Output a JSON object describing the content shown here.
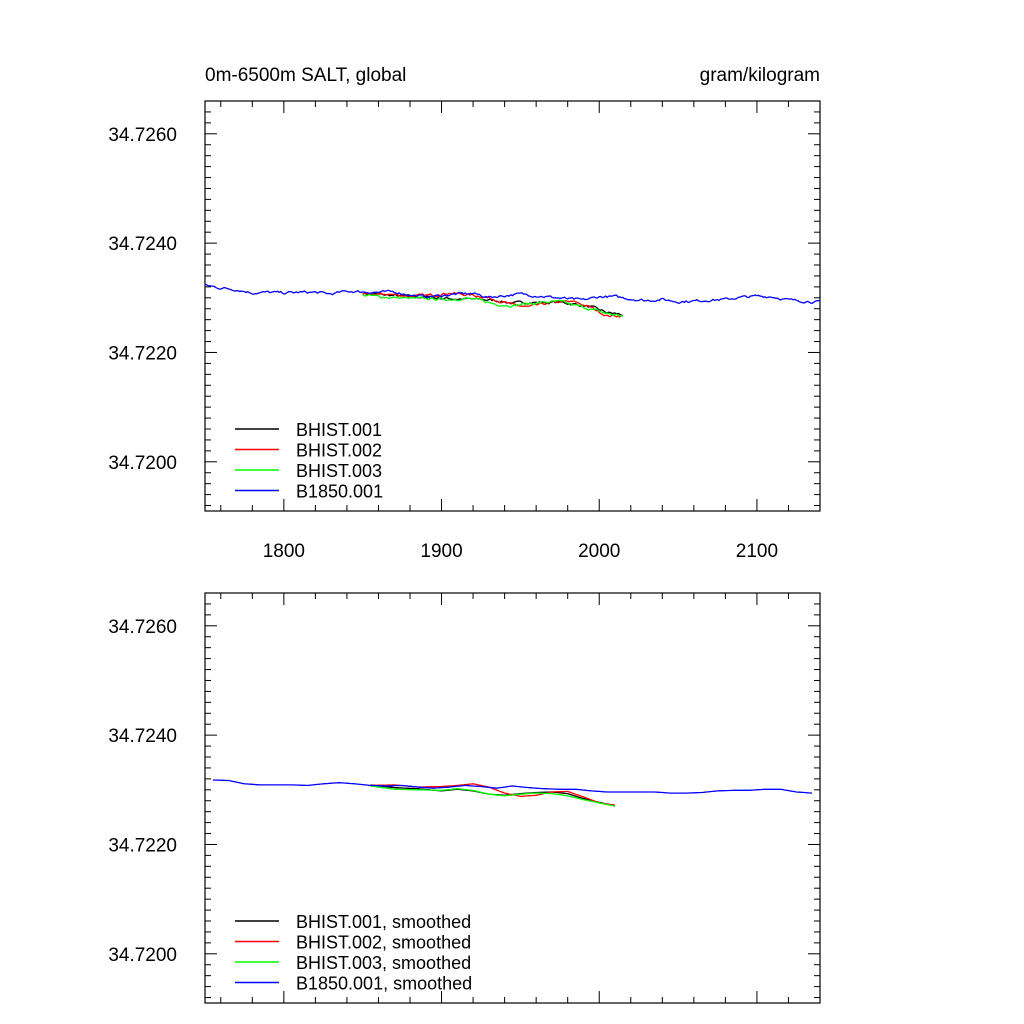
{
  "header": {
    "left_title": "0m-6500m SALT, global",
    "right_title": "gram/kilogram"
  },
  "colors": {
    "BHIST.001": "#000000",
    "BHIST.002": "#ff0000",
    "BHIST.003": "#00ff00",
    "B1850.001": "#0000ff"
  },
  "chart_data": [
    {
      "type": "line",
      "title": "0m-6500m SALT, global",
      "units": "gram/kilogram",
      "xlim": [
        1750,
        2140
      ],
      "ylim": [
        34.7191,
        34.7266
      ],
      "x_ticks": [
        1800,
        1900,
        2000,
        2100
      ],
      "x_tick_labels": [
        "1800",
        "1900",
        "2000",
        "2100"
      ],
      "y_ticks": [
        34.726,
        34.724,
        34.722,
        34.72
      ],
      "y_tick_labels": [
        "34.7260",
        "34.7240",
        "34.7220",
        "34.7200"
      ],
      "legend_position": "bottom-left",
      "grid": false,
      "series": [
        {
          "name": "BHIST.001",
          "color": "#000000",
          "noisy": true,
          "points": [
            [
              1850,
              34.72308
            ],
            [
              1870,
              34.72304
            ],
            [
              1890,
              34.72301
            ],
            [
              1910,
              34.72298
            ],
            [
              1925,
              34.72297
            ],
            [
              1935,
              34.72295
            ],
            [
              1945,
              34.7229
            ],
            [
              1955,
              34.72292
            ],
            [
              1965,
              34.72291
            ],
            [
              1975,
              34.72292
            ],
            [
              1985,
              34.72288
            ],
            [
              1995,
              34.72283
            ],
            [
              2005,
              34.72273
            ],
            [
              2015,
              34.72269
            ]
          ]
        },
        {
          "name": "BHIST.002",
          "color": "#ff0000",
          "noisy": true,
          "points": [
            [
              1850,
              34.72305
            ],
            [
              1865,
              34.72307
            ],
            [
              1880,
              34.72303
            ],
            [
              1895,
              34.72305
            ],
            [
              1905,
              34.72309
            ],
            [
              1915,
              34.72306
            ],
            [
              1925,
              34.72303
            ],
            [
              1935,
              34.72296
            ],
            [
              1945,
              34.72287
            ],
            [
              1955,
              34.72283
            ],
            [
              1965,
              34.72289
            ],
            [
              1975,
              34.72293
            ],
            [
              1985,
              34.72292
            ],
            [
              1995,
              34.72282
            ],
            [
              2005,
              34.72267
            ],
            [
              2015,
              34.72267
            ]
          ]
        },
        {
          "name": "BHIST.003",
          "color": "#00ff00",
          "noisy": true,
          "points": [
            [
              1850,
              34.72305
            ],
            [
              1865,
              34.72301
            ],
            [
              1880,
              34.72299
            ],
            [
              1895,
              34.72298
            ],
            [
              1905,
              34.72297
            ],
            [
              1915,
              34.72299
            ],
            [
              1925,
              34.72295
            ],
            [
              1935,
              34.72288
            ],
            [
              1945,
              34.72286
            ],
            [
              1955,
              34.72289
            ],
            [
              1965,
              34.72292
            ],
            [
              1975,
              34.72293
            ],
            [
              1985,
              34.72286
            ],
            [
              1995,
              34.72279
            ],
            [
              2005,
              34.72271
            ],
            [
              2015,
              34.72267
            ]
          ]
        },
        {
          "name": "B1850.001",
          "color": "#0000ff",
          "noisy": true,
          "points": [
            [
              1750,
              34.72323
            ],
            [
              1760,
              34.72318
            ],
            [
              1770,
              34.72315
            ],
            [
              1780,
              34.72309
            ],
            [
              1790,
              34.7231
            ],
            [
              1800,
              34.72309
            ],
            [
              1810,
              34.7231
            ],
            [
              1820,
              34.7231
            ],
            [
              1830,
              34.72307
            ],
            [
              1840,
              34.72312
            ],
            [
              1850,
              34.72311
            ],
            [
              1860,
              34.7231
            ],
            [
              1870,
              34.72311
            ],
            [
              1880,
              34.72305
            ],
            [
              1890,
              34.72302
            ],
            [
              1900,
              34.72304
            ],
            [
              1910,
              34.72307
            ],
            [
              1920,
              34.72308
            ],
            [
              1930,
              34.72301
            ],
            [
              1940,
              34.72304
            ],
            [
              1950,
              34.72307
            ],
            [
              1960,
              34.72304
            ],
            [
              1970,
              34.72301
            ],
            [
              1980,
              34.72298
            ],
            [
              1990,
              34.72296
            ],
            [
              2000,
              34.72302
            ],
            [
              2010,
              34.72302
            ],
            [
              2020,
              34.72298
            ],
            [
              2030,
              34.72295
            ],
            [
              2040,
              34.72297
            ],
            [
              2050,
              34.72293
            ],
            [
              2060,
              34.72294
            ],
            [
              2070,
              34.72296
            ],
            [
              2080,
              34.72297
            ],
            [
              2090,
              34.72301
            ],
            [
              2100,
              34.72303
            ],
            [
              2110,
              34.72302
            ],
            [
              2120,
              34.72296
            ],
            [
              2130,
              34.72294
            ],
            [
              2140,
              34.72292
            ]
          ]
        }
      ]
    },
    {
      "type": "line",
      "xlim": [
        1750,
        2140
      ],
      "ylim": [
        34.7191,
        34.7266
      ],
      "x_ticks": [
        1800,
        1900,
        2000,
        2100
      ],
      "y_ticks": [
        34.726,
        34.724,
        34.722,
        34.72
      ],
      "y_tick_labels": [
        "34.7260",
        "34.7240",
        "34.7220",
        "34.7200"
      ],
      "legend_position": "bottom-left",
      "grid": false,
      "series": [
        {
          "name": "BHIST.001, smoothed",
          "color": "#000000",
          "noisy": false,
          "points": [
            [
              1855,
              34.72309
            ],
            [
              1870,
              34.72304
            ],
            [
              1885,
              34.72302
            ],
            [
              1900,
              34.72298
            ],
            [
              1910,
              34.72301
            ],
            [
              1920,
              34.72298
            ],
            [
              1930,
              34.72292
            ],
            [
              1940,
              34.7229
            ],
            [
              1950,
              34.72293
            ],
            [
              1960,
              34.72295
            ],
            [
              1970,
              34.72296
            ],
            [
              1980,
              34.72293
            ],
            [
              1990,
              34.72284
            ],
            [
              2000,
              34.72277
            ],
            [
              2010,
              34.72271
            ]
          ]
        },
        {
          "name": "BHIST.002, smoothed",
          "color": "#ff0000",
          "noisy": false,
          "points": [
            [
              1855,
              34.72308
            ],
            [
              1870,
              34.72309
            ],
            [
              1885,
              34.72305
            ],
            [
              1900,
              34.72306
            ],
            [
              1910,
              34.72308
            ],
            [
              1920,
              34.72311
            ],
            [
              1930,
              34.72305
            ],
            [
              1940,
              34.72294
            ],
            [
              1950,
              34.72288
            ],
            [
              1960,
              34.7229
            ],
            [
              1970,
              34.72296
            ],
            [
              1980,
              34.72297
            ],
            [
              1990,
              34.72287
            ],
            [
              2000,
              34.72276
            ],
            [
              2010,
              34.72272
            ]
          ]
        },
        {
          "name": "BHIST.003, smoothed",
          "color": "#00ff00",
          "noisy": false,
          "points": [
            [
              1855,
              34.72307
            ],
            [
              1870,
              34.72301
            ],
            [
              1885,
              34.723
            ],
            [
              1900,
              34.72299
            ],
            [
              1910,
              34.72302
            ],
            [
              1920,
              34.72299
            ],
            [
              1930,
              34.72292
            ],
            [
              1940,
              34.72289
            ],
            [
              1950,
              34.72292
            ],
            [
              1960,
              34.72294
            ],
            [
              1970,
              34.72293
            ],
            [
              1980,
              34.72289
            ],
            [
              1990,
              34.72282
            ],
            [
              2000,
              34.72276
            ],
            [
              2010,
              34.7227
            ]
          ]
        },
        {
          "name": "B1850.001, smoothed",
          "color": "#0000ff",
          "noisy": false,
          "points": [
            [
              1755,
              34.72318
            ],
            [
              1765,
              34.72317
            ],
            [
              1775,
              34.72311
            ],
            [
              1785,
              34.72309
            ],
            [
              1795,
              34.72309
            ],
            [
              1805,
              34.72309
            ],
            [
              1815,
              34.72308
            ],
            [
              1825,
              34.72311
            ],
            [
              1835,
              34.72313
            ],
            [
              1845,
              34.72311
            ],
            [
              1855,
              34.72308
            ],
            [
              1865,
              34.72307
            ],
            [
              1875,
              34.72308
            ],
            [
              1885,
              34.72305
            ],
            [
              1895,
              34.72303
            ],
            [
              1905,
              34.72305
            ],
            [
              1915,
              34.72308
            ],
            [
              1925,
              34.72306
            ],
            [
              1935,
              34.72303
            ],
            [
              1945,
              34.72307
            ],
            [
              1955,
              34.72304
            ],
            [
              1965,
              34.72302
            ],
            [
              1975,
              34.72301
            ],
            [
              1985,
              34.72301
            ],
            [
              1995,
              34.72298
            ],
            [
              2005,
              34.72296
            ],
            [
              2015,
              34.72296
            ],
            [
              2025,
              34.72296
            ],
            [
              2035,
              34.72296
            ],
            [
              2045,
              34.72294
            ],
            [
              2055,
              34.72294
            ],
            [
              2065,
              34.72295
            ],
            [
              2075,
              34.72298
            ],
            [
              2085,
              34.72299
            ],
            [
              2095,
              34.72299
            ],
            [
              2105,
              34.72301
            ],
            [
              2115,
              34.72301
            ],
            [
              2125,
              34.72296
            ],
            [
              2135,
              34.72294
            ]
          ]
        }
      ]
    }
  ]
}
